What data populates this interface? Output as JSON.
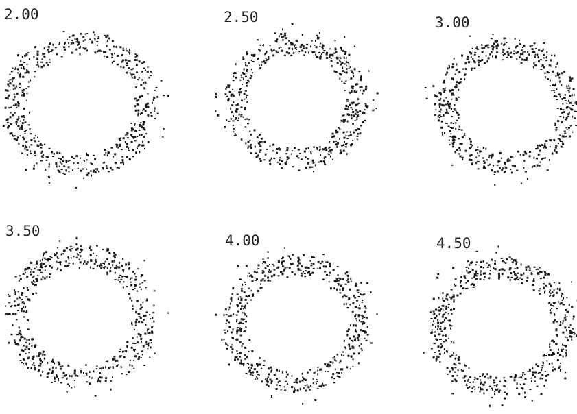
{
  "chart_data": [
    {
      "type": "scatter",
      "title": "2.00",
      "shape": "ring",
      "inner_radius": 1.0,
      "outer_radius": 1.45,
      "point_count": 560,
      "seed": 11,
      "point_color": "#1a1a1a"
    },
    {
      "type": "scatter",
      "title": "2.50",
      "shape": "ring",
      "inner_radius": 1.0,
      "outer_radius": 1.45,
      "point_count": 560,
      "seed": 23,
      "point_color": "#1a1a1a"
    },
    {
      "type": "scatter",
      "title": "3.00",
      "shape": "ring",
      "inner_radius": 1.0,
      "outer_radius": 1.45,
      "point_count": 560,
      "seed": 37,
      "point_color": "#1a1a1a"
    },
    {
      "type": "scatter",
      "title": "3.50",
      "shape": "ring",
      "inner_radius": 1.0,
      "outer_radius": 1.45,
      "point_count": 560,
      "seed": 41,
      "point_color": "#1a1a1a"
    },
    {
      "type": "scatter",
      "title": "4.00",
      "shape": "ring",
      "inner_radius": 1.0,
      "outer_radius": 1.45,
      "point_count": 560,
      "seed": 53,
      "point_color": "#1a1a1a"
    },
    {
      "type": "scatter",
      "title": "4.50",
      "shape": "ring",
      "inner_radius": 1.0,
      "outer_radius": 1.45,
      "point_count": 560,
      "seed": 67,
      "point_color": "#1a1a1a"
    }
  ]
}
